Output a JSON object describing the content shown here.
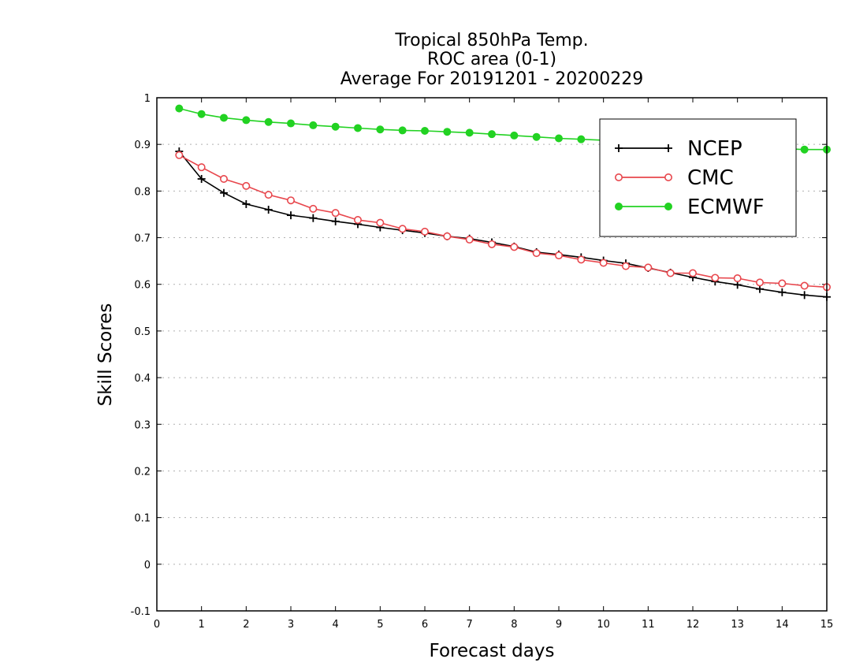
{
  "chart_data": {
    "type": "line",
    "title": [
      "Tropical 850hPa Temp.",
      "ROC area (0-1)",
      "Average For 20191201 - 20200229"
    ],
    "xlabel": "Forecast days",
    "ylabel": "Skill Scores",
    "xlim": [
      0,
      15
    ],
    "ylim": [
      -0.1,
      1
    ],
    "xticks": [
      "0",
      "1",
      "2",
      "3",
      "4",
      "5",
      "6",
      "7",
      "8",
      "9",
      "10",
      "11",
      "12",
      "13",
      "14",
      "15"
    ],
    "yticks": [
      "-0.1",
      "0",
      "0.1",
      "0.2",
      "0.3",
      "0.4",
      "0.5",
      "0.6",
      "0.7",
      "0.8",
      "0.9",
      "1"
    ],
    "grid": "horizontal-dotted",
    "legend_position": "top-right",
    "x": [
      0.5,
      1,
      1.5,
      2,
      2.5,
      3,
      3.5,
      4,
      4.5,
      5,
      5.5,
      6,
      6.5,
      7,
      7.5,
      8,
      8.5,
      9,
      9.5,
      10,
      10.5,
      11,
      11.5,
      12,
      12.5,
      13,
      13.5,
      14,
      14.5,
      15
    ],
    "series": [
      {
        "name": "NCEP",
        "color": "#000000",
        "marker": "plus",
        "values": [
          0.885,
          0.826,
          0.796,
          0.772,
          0.76,
          0.748,
          0.742,
          0.735,
          0.729,
          0.722,
          0.716,
          0.71,
          0.703,
          0.698,
          0.69,
          0.681,
          0.669,
          0.664,
          0.658,
          0.651,
          0.645,
          0.635,
          0.625,
          0.615,
          0.606,
          0.599,
          0.59,
          0.583,
          0.577,
          0.573
        ]
      },
      {
        "name": "CMC",
        "color": "#e8474d",
        "marker": "open-circle",
        "values": [
          0.877,
          0.851,
          0.826,
          0.811,
          0.792,
          0.78,
          0.762,
          0.753,
          0.738,
          0.732,
          0.719,
          0.713,
          0.703,
          0.696,
          0.686,
          0.68,
          0.667,
          0.662,
          0.653,
          0.646,
          0.639,
          0.636,
          0.624,
          0.624,
          0.614,
          0.613,
          0.604,
          0.602,
          0.597,
          0.594
        ]
      },
      {
        "name": "ECMWF",
        "color": "#22d222",
        "marker": "filled-circle",
        "values": [
          0.977,
          0.965,
          0.957,
          0.952,
          0.948,
          0.945,
          0.941,
          0.938,
          0.935,
          0.932,
          0.93,
          0.929,
          0.927,
          0.925,
          0.922,
          0.919,
          0.916,
          0.913,
          0.911,
          0.909,
          0.906,
          0.903,
          0.9,
          0.898,
          0.896,
          0.894,
          0.892,
          0.891,
          0.889,
          0.889
        ]
      }
    ]
  }
}
